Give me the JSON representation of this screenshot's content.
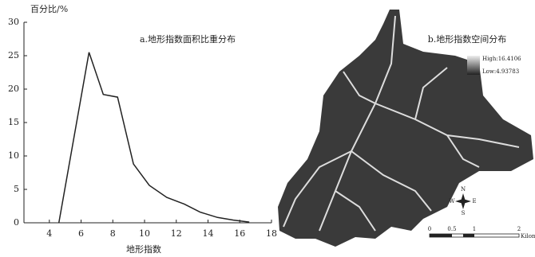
{
  "chart_data": {
    "type": "line",
    "title": "a.地形指数面积比重分布",
    "y_label": "百分比/%",
    "x_label": "地形指数",
    "x": [
      4.6,
      6.5,
      7.4,
      8.3,
      9.3,
      10.3,
      11.4,
      12.5,
      13.5,
      14.6,
      15.6,
      16.6
    ],
    "values": [
      0,
      25.5,
      19.2,
      18.8,
      8.8,
      5.6,
      3.8,
      2.8,
      1.6,
      0.8,
      0.4,
      0.1
    ],
    "color": "#222222",
    "xlim": [
      2.4,
      18
    ],
    "xticks": [
      4,
      6,
      8,
      10,
      12,
      14,
      16,
      18
    ],
    "ylim": [
      0,
      30
    ],
    "yticks": [
      0,
      5,
      10,
      15,
      20,
      25,
      30
    ]
  },
  "map": {
    "title": "b.地形指数空间分布",
    "legend_high": "High:16.4106",
    "legend_low": "Low:4.93783",
    "compass": [
      "N",
      "S",
      "W",
      "E"
    ],
    "scale_labels": [
      "0",
      "0.5",
      "1",
      "2"
    ],
    "scale_unit": "Kilometers"
  }
}
